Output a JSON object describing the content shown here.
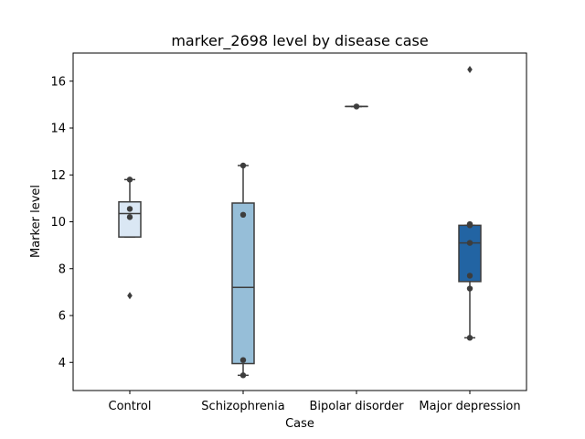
{
  "chart_data": {
    "type": "box",
    "title": "marker_2698 level by disease case",
    "xlabel": "Case",
    "ylabel": "Marker level",
    "ylim": [
      2.8,
      17.2
    ],
    "yticks": [
      4,
      6,
      8,
      10,
      12,
      14,
      16
    ],
    "categories": [
      "Control",
      "Schizophrenia",
      "Bipolar disorder",
      "Major depression"
    ],
    "series": [
      {
        "category": "Control",
        "box_color": "#dae7f4",
        "q1": 9.35,
        "median": 10.35,
        "q3": 10.85,
        "whisker_low": 9.35,
        "whisker_high": 11.8,
        "outliers": [
          6.85
        ],
        "points": [
          11.8,
          10.55,
          10.2
        ]
      },
      {
        "category": "Schizophrenia",
        "box_color": "#96bed8",
        "q1": 3.95,
        "median": 7.2,
        "q3": 10.8,
        "whisker_low": 3.45,
        "whisker_high": 12.4,
        "outliers": [],
        "points": [
          12.4,
          10.3,
          4.1,
          3.45
        ]
      },
      {
        "category": "Bipolar disorder",
        "box_color": "#4b8fc4",
        "q1": 14.92,
        "median": 14.92,
        "q3": 14.92,
        "whisker_low": 14.92,
        "whisker_high": 14.92,
        "outliers": [],
        "points": [
          14.92
        ]
      },
      {
        "category": "Major depression",
        "box_color": "#2264a3",
        "q1": 7.45,
        "median": 9.1,
        "q3": 9.85,
        "whisker_low": 5.05,
        "whisker_high": 9.85,
        "outliers": [
          16.5
        ],
        "points": [
          9.9,
          9.85,
          9.1,
          7.7,
          7.15,
          5.05
        ]
      }
    ],
    "grid": false,
    "colors": {
      "edge": "#3d3d3d",
      "point": "#3d3d3d"
    }
  }
}
